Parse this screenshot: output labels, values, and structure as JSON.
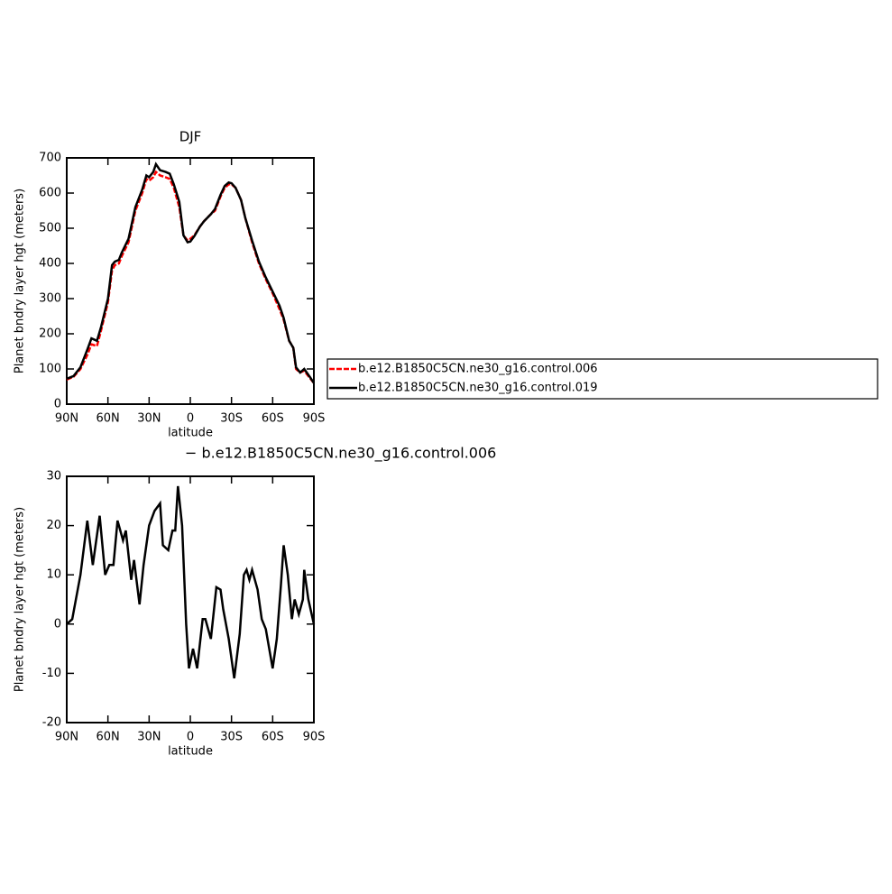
{
  "chart_data": [
    {
      "type": "line",
      "title": "DJF",
      "xlabel": "latitude",
      "ylabel": "Planet bndry layer hgt (meters)",
      "xlim": [
        90,
        -90
      ],
      "xticks": [
        {
          "value": 90,
          "label": "90N"
        },
        {
          "value": 60,
          "label": "60N"
        },
        {
          "value": 30,
          "label": "30N"
        },
        0,
        {
          "value": -30,
          "label": "30S"
        },
        {
          "value": -60,
          "label": "60S"
        },
        {
          "value": -90,
          "label": "90S"
        }
      ],
      "ylim": [
        0,
        700
      ],
      "yticks": [
        0,
        100,
        200,
        300,
        400,
        500,
        600,
        700
      ],
      "legend": "right",
      "x": [
        90,
        85,
        80,
        75,
        72,
        68,
        65,
        60,
        57,
        55,
        52,
        50,
        45,
        40,
        35,
        32,
        30,
        27,
        25,
        22,
        18,
        15,
        12,
        8,
        5,
        2,
        0,
        -3,
        -7,
        -10,
        -15,
        -18,
        -22,
        -25,
        -28,
        -30,
        -33,
        -37,
        -40,
        -45,
        -50,
        -55,
        -60,
        -65,
        -68,
        -72,
        -75,
        -77,
        -80,
        -83,
        -87,
        -90
      ],
      "series": [
        {
          "name": "b.e12.B1850C5CN.ne30_g16.control.006",
          "color": "#ff0000",
          "linestyle": "dashed",
          "values": [
            70,
            78,
            100,
            140,
            170,
            165,
            210,
            290,
            380,
            395,
            400,
            420,
            460,
            550,
            600,
            640,
            635,
            645,
            660,
            650,
            645,
            640,
            615,
            560,
            480,
            465,
            470,
            480,
            505,
            520,
            540,
            550,
            590,
            615,
            625,
            625,
            615,
            580,
            530,
            460,
            400,
            355,
            315,
            270,
            240,
            180,
            160,
            100,
            90,
            95,
            75,
            60
          ]
        },
        {
          "name": "b.e12.B1850C5CN.ne30_g16.control.019",
          "color": "#000000",
          "linestyle": "solid",
          "values": [
            72,
            80,
            105,
            155,
            187,
            180,
            220,
            300,
            395,
            405,
            410,
            430,
            470,
            560,
            610,
            650,
            645,
            660,
            682,
            665,
            660,
            655,
            625,
            575,
            480,
            460,
            462,
            478,
            505,
            520,
            540,
            555,
            595,
            620,
            630,
            628,
            615,
            580,
            530,
            465,
            405,
            360,
            320,
            280,
            245,
            180,
            160,
            105,
            90,
            100,
            78,
            60
          ]
        }
      ]
    },
    {
      "type": "line",
      "title": "− b.e12.B1850C5CN.ne30_g16.control.006",
      "xlabel": "latitude",
      "ylabel": "Planet bndry layer hgt (meters)",
      "xlim": [
        90,
        -90
      ],
      "xticks": [
        {
          "value": 90,
          "label": "90N"
        },
        {
          "value": 60,
          "label": "60N"
        },
        {
          "value": 30,
          "label": "30N"
        },
        0,
        {
          "value": -30,
          "label": "30S"
        },
        {
          "value": -60,
          "label": "60S"
        },
        {
          "value": -90,
          "label": "90S"
        }
      ],
      "ylim": [
        -20,
        30
      ],
      "yticks": [
        -20,
        -10,
        0,
        10,
        20,
        30
      ],
      "x": [
        90,
        86,
        80,
        75,
        71,
        66,
        62,
        59,
        56,
        53,
        49,
        47,
        43,
        41,
        37,
        34,
        30,
        26,
        22,
        20,
        16,
        13,
        11,
        9,
        6,
        3,
        1,
        -2,
        -5,
        -9,
        -11,
        -15,
        -19,
        -22,
        -24,
        -28,
        -32,
        -36,
        -39,
        -41,
        -43,
        -45,
        -49,
        -52,
        -55,
        -60,
        -63,
        -66,
        -68,
        -71,
        -74,
        -76,
        -79,
        -82,
        -83,
        -86,
        -90
      ],
      "series": [
        {
          "color": "#000000",
          "linestyle": "solid",
          "values": [
            0,
            1,
            10,
            21,
            12,
            22,
            10,
            12,
            12,
            21,
            17,
            19,
            9,
            13,
            4,
            12,
            20,
            23,
            24.5,
            16,
            15,
            19,
            19,
            28,
            20,
            0,
            -9,
            -5,
            -9,
            1,
            1,
            -3,
            7.5,
            7,
            3,
            -3,
            -11,
            -2,
            10,
            11,
            9,
            11,
            7,
            1,
            -1,
            -9,
            -3,
            8,
            16,
            10,
            1,
            5,
            2,
            5,
            11,
            5,
            0
          ]
        }
      ]
    }
  ]
}
